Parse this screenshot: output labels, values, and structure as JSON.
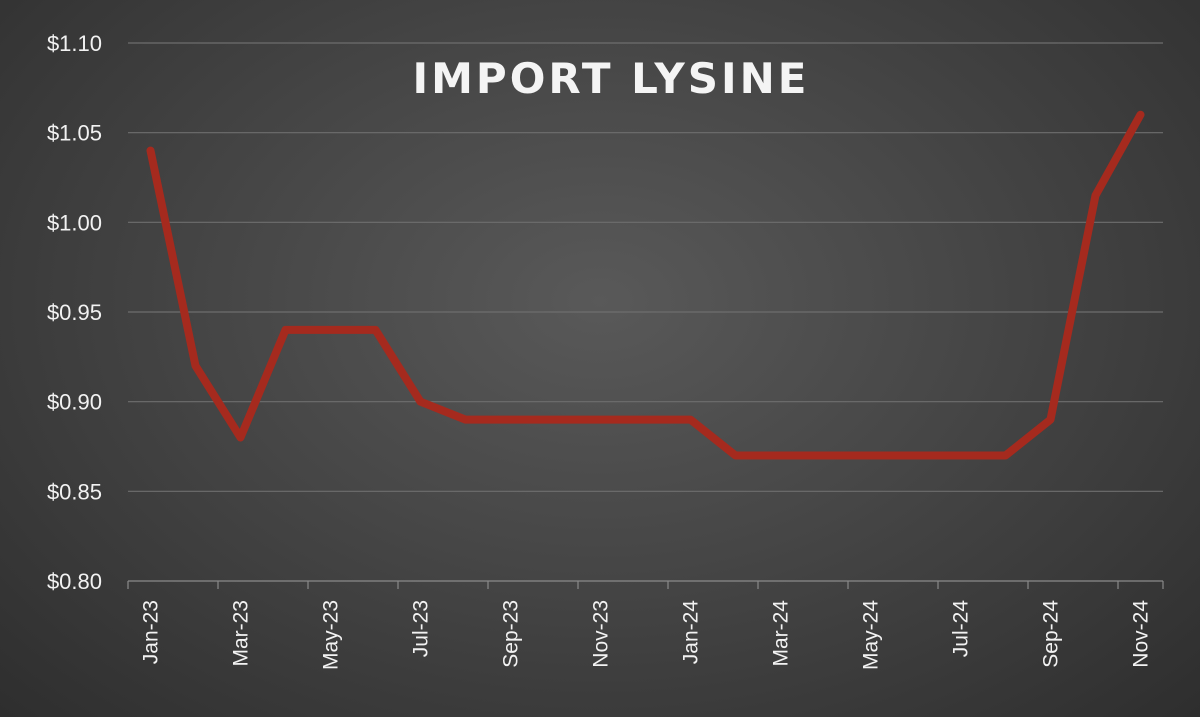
{
  "chart_data": {
    "type": "line",
    "title": "IMPORT LYSINE",
    "xlabel": "",
    "ylabel": "",
    "ylim": [
      0.8,
      1.1
    ],
    "y_ticks": [
      "$0.80",
      "$0.85",
      "$0.90",
      "$0.95",
      "$1.00",
      "$1.05",
      "$1.10"
    ],
    "x_ticks": [
      "Jan-23",
      "Mar-23",
      "May-23",
      "Jul-23",
      "Sep-23",
      "Nov-23",
      "Jan-24",
      "Mar-24",
      "May-24",
      "Jul-24",
      "Sep-24",
      "Nov-24"
    ],
    "x": [
      "Jan-23",
      "Feb-23",
      "Mar-23",
      "Apr-23",
      "May-23",
      "Jun-23",
      "Jul-23",
      "Aug-23",
      "Sep-23",
      "Oct-23",
      "Nov-23",
      "Dec-23",
      "Jan-24",
      "Feb-24",
      "Mar-24",
      "Apr-24",
      "May-24",
      "Jun-24",
      "Jul-24",
      "Aug-24",
      "Sep-24",
      "Oct-24",
      "Nov-24"
    ],
    "grid": true,
    "legend": "none",
    "series": [
      {
        "color": "#a52a1e",
        "values": [
          1.04,
          0.92,
          0.88,
          0.94,
          0.94,
          0.94,
          0.9,
          0.89,
          0.89,
          0.89,
          0.89,
          0.89,
          0.89,
          0.87,
          0.87,
          0.87,
          0.87,
          0.87,
          0.87,
          0.87,
          0.89,
          1.015,
          1.06
        ]
      }
    ]
  }
}
